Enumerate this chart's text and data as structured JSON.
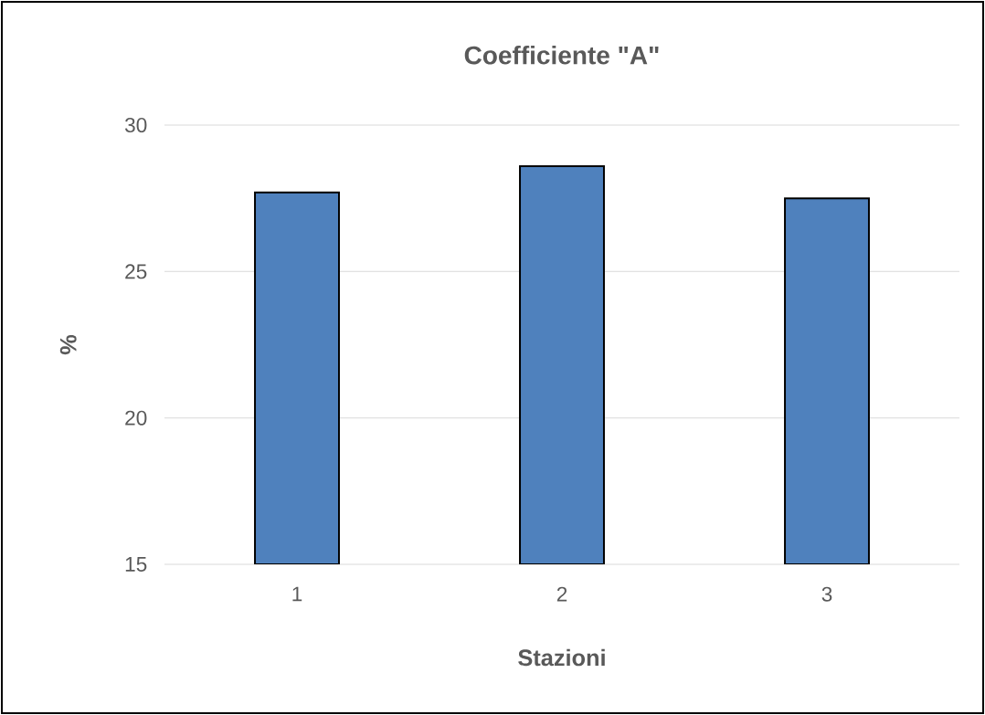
{
  "chart_data": {
    "type": "bar",
    "title": "Coefficiente \"A\"",
    "xlabel": "Stazioni",
    "ylabel": "%",
    "categories": [
      "1",
      "2",
      "3"
    ],
    "values": [
      27.7,
      28.6,
      27.5
    ],
    "color": "#4f81bd",
    "ylim": [
      15,
      30
    ],
    "yticks": [
      15,
      20,
      25,
      30
    ],
    "grid": "y"
  }
}
